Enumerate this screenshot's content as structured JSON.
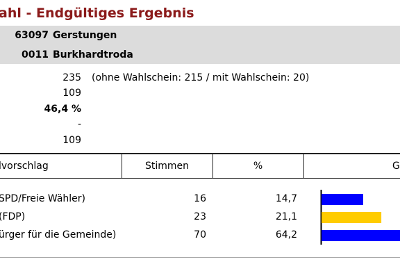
{
  "header": {
    "title": "ahl - Endgültiges Ergebnis",
    "region": {
      "code": "63097",
      "name": "Gerstungen"
    },
    "district": {
      "code": "0011",
      "name": "Burkhardtroda"
    }
  },
  "stats": {
    "eligible": 235,
    "eligible_note": "(ohne Wahlschein: 215 / mit Wahlschein: 20)",
    "voters": 109,
    "turnout": "46,4 %",
    "invalid": "-",
    "valid": 109
  },
  "table": {
    "columns": [
      "lvorschlag",
      "Stimmen",
      "%",
      "G"
    ],
    "rows": [
      {
        "party": "SPD/Freie Wähler)",
        "votes": 16,
        "percent": 14.7,
        "percent_label": "14,7",
        "color": "#0000ff"
      },
      {
        "party": "(FDP)",
        "votes": 23,
        "percent": 21.1,
        "percent_label": "21,1",
        "color": "#ffcc00"
      },
      {
        "party": "ürger für die Gemeinde)",
        "votes": 70,
        "percent": 64.2,
        "percent_label": "64,2",
        "color": "#0000ff"
      }
    ]
  }
}
